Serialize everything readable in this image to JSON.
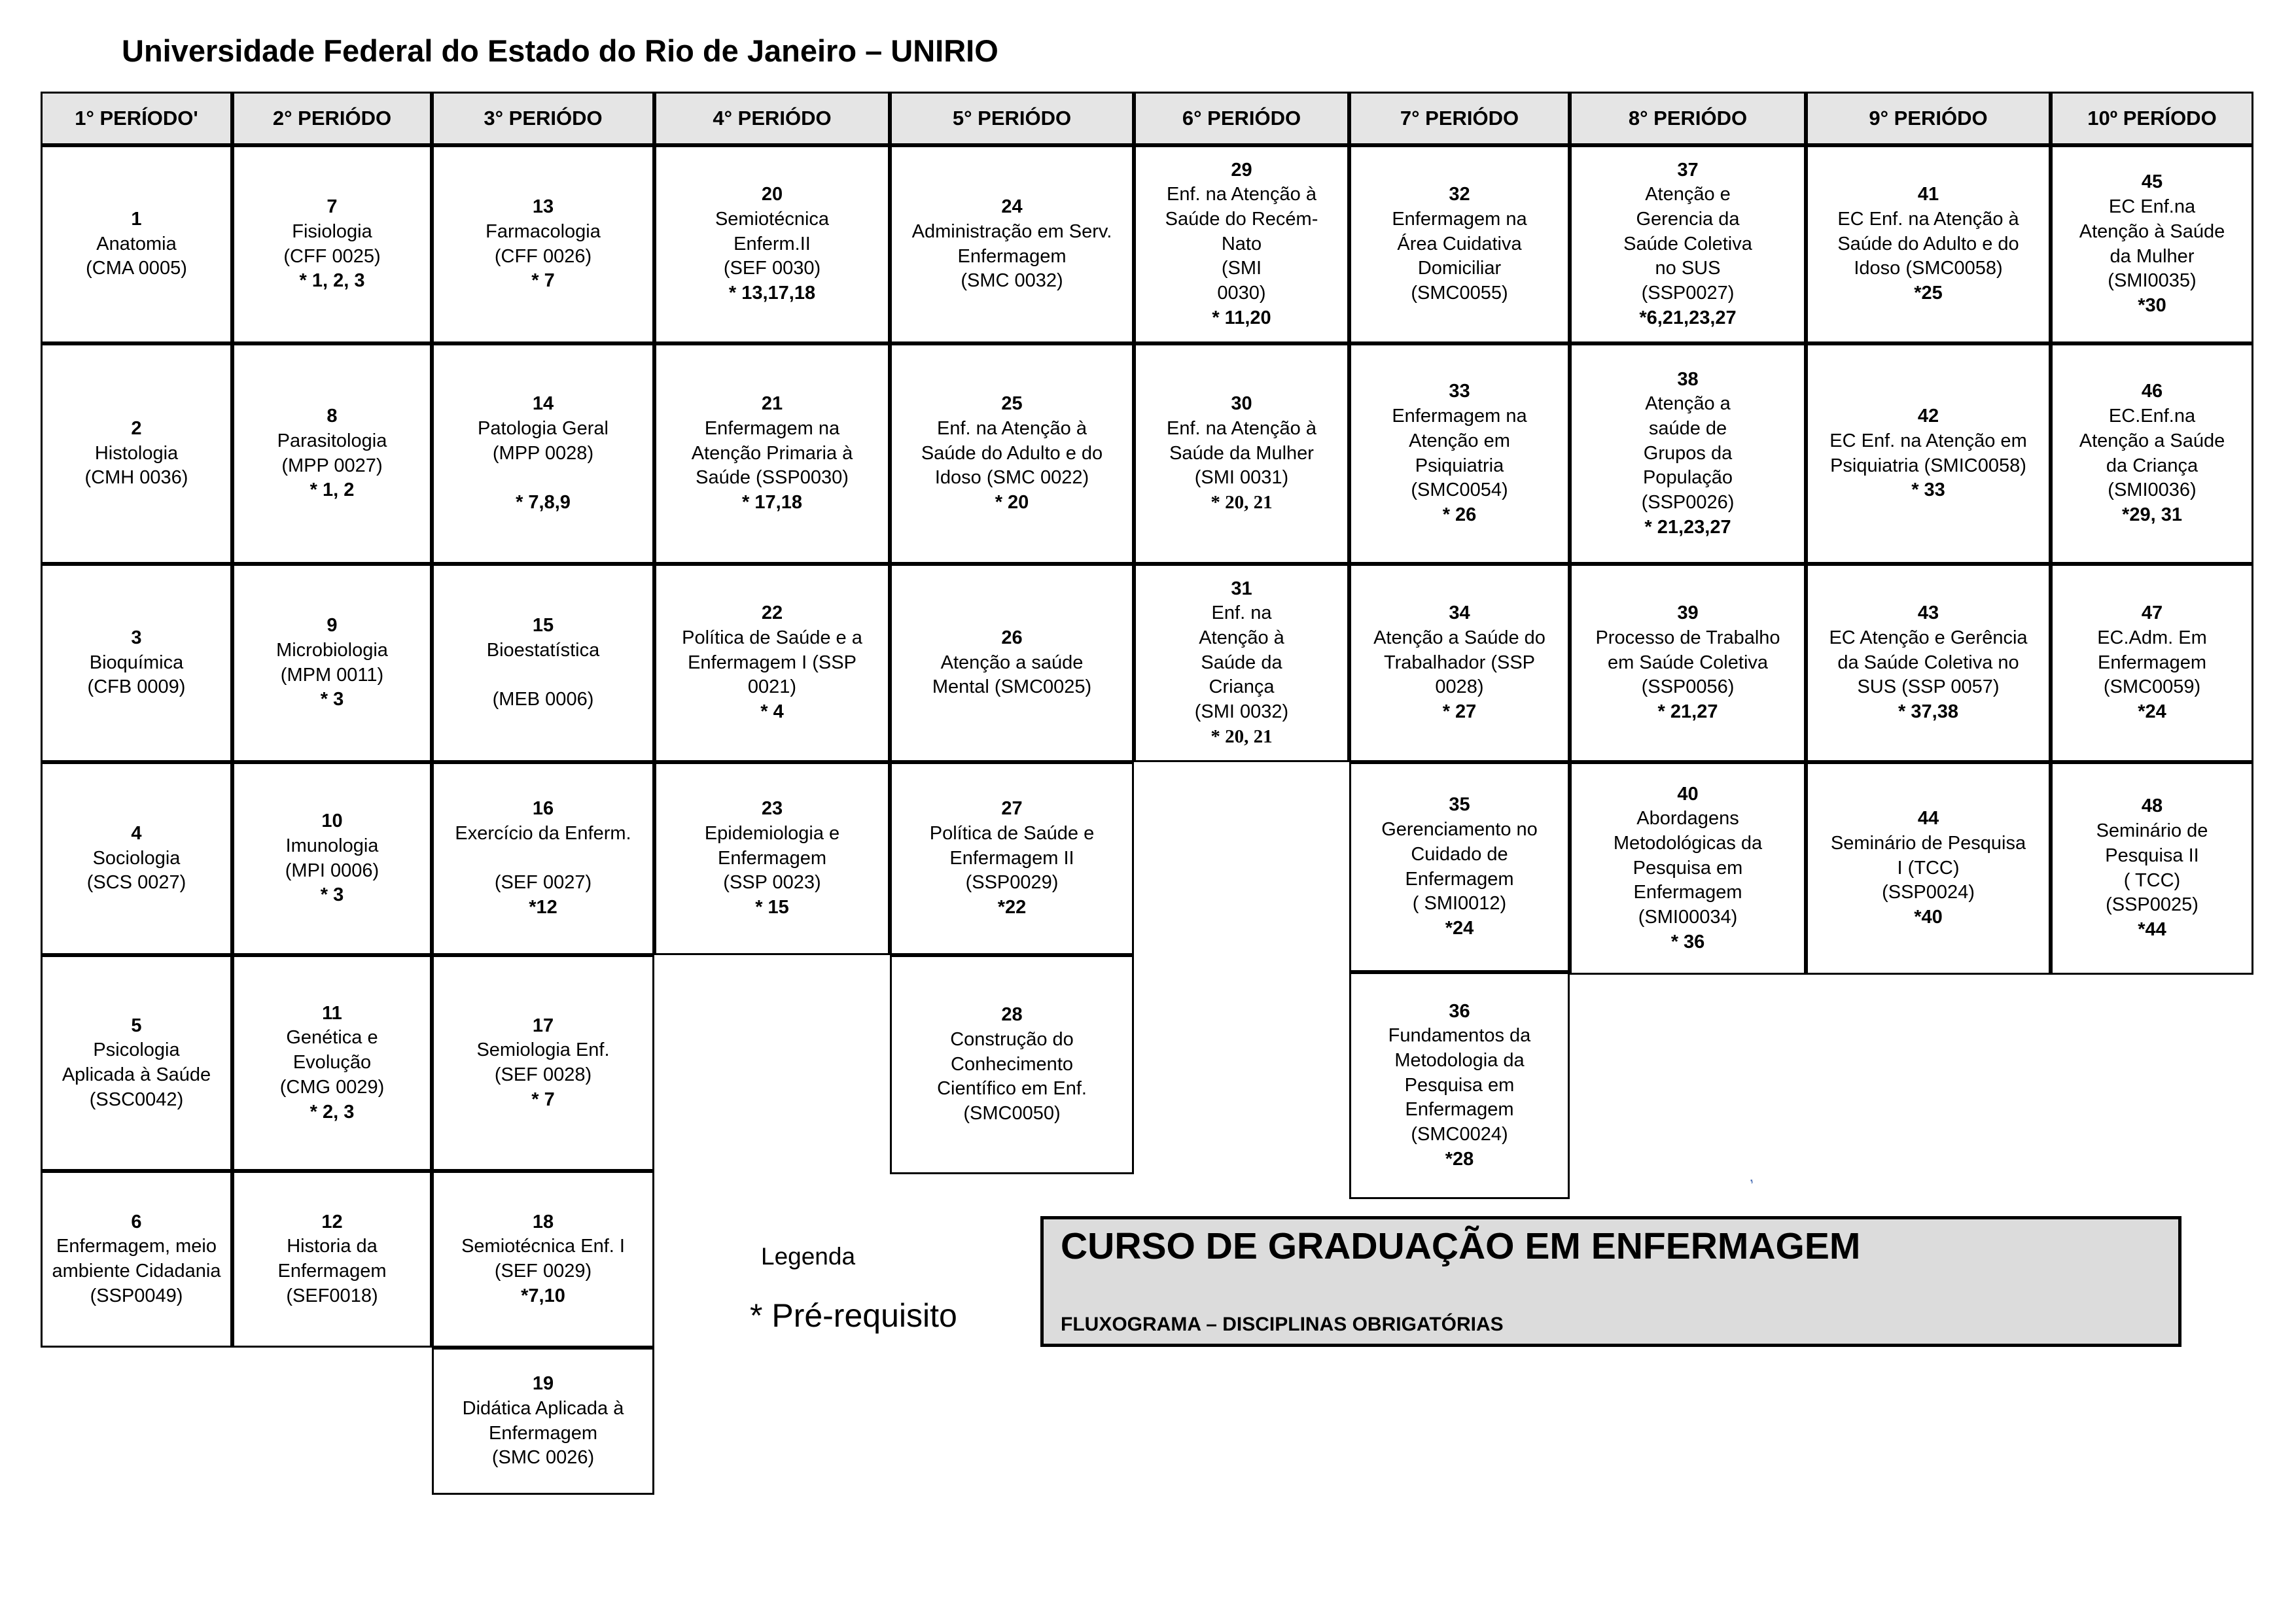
{
  "page_title": "Universidade Federal do Estado do Rio de Janeiro – UNIRIO",
  "tick_mark": "‚",
  "legend": {
    "heading": "Legenda",
    "note": "* Pré-requisito"
  },
  "info_box": {
    "title": "CURSO DE GRADUAÇÃO EM ENFERMAGEM",
    "subtitle": "FLUXOGRAMA – DISCIPLINAS OBRIGATÓRIAS"
  },
  "periods": [
    {
      "label": "1° PERÍODO'",
      "cells": [
        {
          "num": "1",
          "lines": [
            "Anatomia",
            "(CMA 0005)"
          ]
        },
        {
          "num": "2",
          "lines": [
            "Histologia",
            "(CMH 0036)"
          ]
        },
        {
          "num": "3",
          "lines": [
            "Bioquímica",
            "(CFB 0009)"
          ]
        },
        {
          "num": "4",
          "lines": [
            "Sociologia",
            "(SCS 0027)"
          ]
        },
        {
          "num": "5",
          "lines": [
            "Psicologia",
            "Aplicada à Saúde",
            "(SSC0042)"
          ]
        },
        {
          "num": "6",
          "lines": [
            "Enfermagem, meio",
            "ambiente Cidadania",
            "(SSP0049)"
          ]
        }
      ]
    },
    {
      "label": "2° PERIÓDO",
      "cells": [
        {
          "num": "7",
          "lines": [
            "Fisiologia",
            "(CFF 0025)"
          ],
          "pre": "* 1, 2, 3"
        },
        {
          "num": "8",
          "lines": [
            "Parasitologia",
            "(MPP 0027)"
          ],
          "pre": "* 1, 2"
        },
        {
          "num": "9",
          "lines": [
            "Microbiologia",
            "(MPM 0011)"
          ],
          "pre": "* 3"
        },
        {
          "num": "10",
          "lines": [
            "Imunologia",
            "(MPI 0006)"
          ],
          "pre": "* 3"
        },
        {
          "num": "11",
          "lines": [
            "Genética e",
            "Evolução",
            "(CMG 0029)"
          ],
          "pre": "* 2, 3"
        },
        {
          "num": "12",
          "lines": [
            "Historia da",
            "Enfermagem",
            "(SEF0018)"
          ]
        }
      ]
    },
    {
      "label": "3° PERIÓDO",
      "cells": [
        {
          "num": "13",
          "lines": [
            "Farmacologia",
            "(CFF 0026)"
          ],
          "pre": "* 7"
        },
        {
          "num": "14",
          "lines": [
            "Patologia Geral",
            "(MPP 0028)",
            ""
          ],
          "pre": "* 7,8,9"
        },
        {
          "num": "15",
          "lines": [
            "Bioestatística",
            "",
            "(MEB 0006)"
          ]
        },
        {
          "num": "16",
          "lines": [
            "Exercício da Enferm.",
            "",
            "(SEF 0027)"
          ],
          "pre": "*12"
        },
        {
          "num": "17",
          "lines": [
            "Semiologia Enf.",
            "(SEF 0028)"
          ],
          "pre": "* 7"
        },
        {
          "num": "18",
          "lines": [
            "Semiotécnica Enf. I",
            "(SEF 0029)"
          ],
          "pre": "*7,10"
        },
        {
          "num": "19",
          "lines": [
            "Didática Aplicada à",
            "Enfermagem",
            "(SMC 0026)"
          ]
        }
      ]
    },
    {
      "label": "4° PERIÓDO",
      "cells": [
        {
          "num": "20",
          "lines": [
            "Semiotécnica",
            "Enferm.II",
            "(SEF 0030)"
          ],
          "pre": "* 13,17,18"
        },
        {
          "num": "21",
          "lines": [
            "Enfermagem na",
            "Atenção Primaria à",
            "Saúde (SSP0030)"
          ],
          "pre": "* 17,18"
        },
        {
          "num": "22",
          "lines": [
            "Política de Saúde e a",
            "Enfermagem I (SSP",
            "0021)"
          ],
          "pre": "* 4"
        },
        {
          "num": "23",
          "lines": [
            "Epidemiologia e",
            "Enfermagem",
            "(SSP 0023)"
          ],
          "pre": "* 15"
        }
      ]
    },
    {
      "label": "5° PERIÓDO",
      "cells": [
        {
          "num": "24",
          "lines": [
            "Administração em Serv.",
            "Enfermagem",
            "(SMC 0032)"
          ]
        },
        {
          "num": "25",
          "lines": [
            "Enf. na Atenção à",
            "Saúde do Adulto e do",
            "Idoso (SMC 0022)"
          ],
          "pre": "* 20"
        },
        {
          "num": "26",
          "lines": [
            "Atenção a saúde",
            "Mental (SMC0025)"
          ]
        },
        {
          "num": "27",
          "lines": [
            "Política de Saúde e",
            "Enfermagem II",
            "(SSP0029)"
          ],
          "pre": "*22"
        },
        {
          "num": "28",
          "lines": [
            "Construção do",
            "Conhecimento",
            "Científico em Enf.",
            "(SMC0050)"
          ]
        }
      ]
    },
    {
      "label": "6° PERIÓDO",
      "cells": [
        {
          "num": "29",
          "lines": [
            "Enf. na Atenção à",
            "Saúde do Recém-",
            "Nato",
            "(SMI",
            "0030)"
          ],
          "pre": "* 11,20"
        },
        {
          "num": "30",
          "lines": [
            "Enf. na Atenção à",
            "Saúde da Mulher",
            "(SMI 0031)"
          ],
          "pre": "* 20, 21",
          "pre_serif": true
        },
        {
          "num": "31",
          "lines": [
            "Enf. na",
            "Atenção à",
            "Saúde da",
            "Criança",
            "(SMI 0032)"
          ],
          "pre": "* 20, 21",
          "pre_serif": true
        }
      ]
    },
    {
      "label": "7° PERIÓDO",
      "cells": [
        {
          "num": "32",
          "lines": [
            "Enfermagem na",
            "Área Cuidativa",
            "Domiciliar",
            "(SMC0055)"
          ]
        },
        {
          "num": "33",
          "lines": [
            "Enfermagem na",
            "Atenção em",
            "Psiquiatria",
            "(SMC0054)"
          ],
          "pre": "* 26"
        },
        {
          "num": "34",
          "lines": [
            "Atenção a Saúde do",
            "Trabalhador (SSP",
            "0028)"
          ],
          "pre": "* 27"
        },
        {
          "num": "35",
          "lines": [
            "Gerenciamento no",
            "Cuidado de",
            "Enfermagem",
            "( SMI0012)"
          ],
          "pre": "*24"
        },
        {
          "num": "36",
          "lines": [
            "Fundamentos da",
            "Metodologia da",
            "Pesquisa em",
            "Enfermagem",
            "(SMC0024)"
          ],
          "pre": "*28"
        }
      ]
    },
    {
      "label": "8° PERIÓDO",
      "cells": [
        {
          "num": "37",
          "lines": [
            "Atenção e",
            "Gerencia da",
            "Saúde Coletiva",
            "no SUS",
            "(SSP0027)"
          ],
          "pre": "*6,21,23,27"
        },
        {
          "num": "38",
          "lines": [
            "Atenção a",
            "saúde de",
            "Grupos da",
            "População",
            "(SSP0026)"
          ],
          "pre": "* 21,23,27"
        },
        {
          "num": "39",
          "lines": [
            "Processo de Trabalho",
            "em Saúde Coletiva",
            "(SSP0056)"
          ],
          "pre": "* 21,27"
        },
        {
          "num": "40",
          "lines": [
            "Abordagens",
            "Metodológicas da",
            "Pesquisa em",
            "Enfermagem",
            "(SMI00034)"
          ],
          "pre": "* 36"
        }
      ]
    },
    {
      "label": "9° PERIÓDO",
      "cells": [
        {
          "num": "41",
          "lines": [
            "EC Enf. na Atenção à",
            "Saúde do Adulto e do",
            "Idoso (SMC0058)"
          ],
          "pre": "*25"
        },
        {
          "num": "42",
          "lines": [
            "EC Enf. na Atenção em",
            "Psiquiatria (SMIC0058)"
          ],
          "pre": "* 33"
        },
        {
          "num": "43",
          "lines": [
            "EC Atenção e Gerência",
            "da Saúde Coletiva no",
            "SUS (SSP 0057)"
          ],
          "pre": "* 37,38"
        },
        {
          "num": "44",
          "lines": [
            "Seminário de Pesquisa",
            "I (TCC)",
            "(SSP0024)"
          ],
          "pre": "*40"
        }
      ]
    },
    {
      "label": "10º PERÍODO",
      "cells": [
        {
          "num": "45",
          "lines": [
            "EC Enf.na",
            "Atenção à Saúde",
            "da Mulher",
            "(SMI0035)"
          ],
          "pre": "*30"
        },
        {
          "num": "46",
          "lines": [
            "EC.Enf.na",
            "Atenção a Saúde",
            "da Criança",
            "(SMI0036)"
          ],
          "pre": "*29, 31"
        },
        {
          "num": "47",
          "lines": [
            "EC.Adm. Em",
            "Enfermagem",
            "(SMC0059)"
          ],
          "pre": "*24"
        },
        {
          "num": "48",
          "lines": [
            "Seminário de",
            "Pesquisa II",
            "( TCC)",
            "(SSP0025)"
          ],
          "pre": "*44"
        }
      ]
    }
  ]
}
